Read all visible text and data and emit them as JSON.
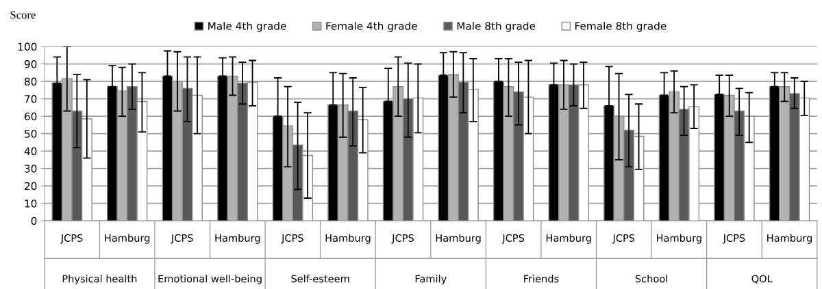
{
  "chart_data": {
    "type": "bar",
    "ylabel": "Score",
    "categories": [
      "JCPS",
      "Hamburg",
      "JCPS",
      "Hamburg",
      "JCPS",
      "Hamburg",
      "JCPS",
      "Hamburg",
      "JCPS",
      "Hamburg",
      "JCPS",
      "Hamburg",
      "JCPS",
      "Hamburg"
    ],
    "annotations": [
      "Physical health",
      "Emotional well-being",
      "Self-esteem",
      "Family",
      "Friends",
      "School",
      "QOL"
    ],
    "ylim": [
      0,
      100
    ],
    "yticks": [
      0,
      10,
      20,
      30,
      40,
      50,
      60,
      70,
      80,
      90,
      100
    ],
    "grid": "y",
    "legend": "top",
    "series": [
      {
        "name": "Male 4th grade",
        "color": "#000000",
        "values": [
          79,
          77,
          83,
          83,
          60,
          66.5,
          68.5,
          83.5,
          80,
          78,
          66,
          72,
          72.5,
          77
        ],
        "errors": [
          [
            79,
            94
          ],
          [
            77,
            89
          ],
          [
            83,
            97.5
          ],
          [
            83,
            93.5
          ],
          [
            60,
            82
          ],
          [
            66.5,
            85
          ],
          [
            68.5,
            87.5
          ],
          [
            83.5,
            96.5
          ],
          [
            80,
            93
          ],
          [
            78,
            90.5
          ],
          [
            66,
            88.5
          ],
          [
            72,
            85
          ],
          [
            72.5,
            83.5
          ],
          [
            77,
            85
          ]
        ]
      },
      {
        "name": "Female 4th grade",
        "color": "#b2b2b2",
        "values": [
          81.5,
          74.5,
          80,
          83,
          54.5,
          66.5,
          77,
          84,
          77,
          78,
          60,
          74,
          72,
          77
        ],
        "errors": [
          [
            63,
            100
          ],
          [
            60,
            88
          ],
          [
            63,
            97
          ],
          [
            72,
            94
          ],
          [
            31,
            77
          ],
          [
            48,
            84.5
          ],
          [
            60,
            94
          ],
          [
            71,
            97
          ],
          [
            60,
            93
          ],
          [
            64,
            92
          ],
          [
            35,
            84.5
          ],
          [
            62,
            86
          ],
          [
            60,
            83.5
          ],
          [
            68.5,
            85
          ]
        ]
      },
      {
        "name": "Male 8th grade",
        "color": "#595959",
        "values": [
          63,
          77,
          76,
          79,
          43.5,
          63,
          70,
          79.5,
          74,
          78,
          52,
          64,
          63,
          73
        ],
        "errors": [
          [
            42,
            84
          ],
          [
            64,
            90
          ],
          [
            57,
            94
          ],
          [
            67,
            91
          ],
          [
            18,
            68
          ],
          [
            43,
            82
          ],
          [
            48,
            90.5
          ],
          [
            62,
            96.5
          ],
          [
            55,
            91
          ],
          [
            66,
            90
          ],
          [
            31,
            72.5
          ],
          [
            49,
            77
          ],
          [
            49,
            76
          ],
          [
            64.5,
            82
          ]
        ]
      },
      {
        "name": "Female 8th grade",
        "color": "#ffffff",
        "values": [
          58.5,
          68.5,
          72,
          79.5,
          37.5,
          58,
          70.5,
          75.5,
          71,
          78,
          48.5,
          65.5,
          60,
          70.5
        ],
        "errors": [
          [
            36,
            81
          ],
          [
            51,
            85
          ],
          [
            50,
            94
          ],
          [
            66,
            92
          ],
          [
            13,
            62
          ],
          [
            39,
            76.5
          ],
          [
            50.5,
            90
          ],
          [
            57,
            93
          ],
          [
            50,
            92
          ],
          [
            64.5,
            91
          ],
          [
            29.5,
            67
          ],
          [
            53,
            78
          ],
          [
            45,
            73.5
          ],
          [
            60.5,
            80
          ]
        ]
      }
    ]
  }
}
